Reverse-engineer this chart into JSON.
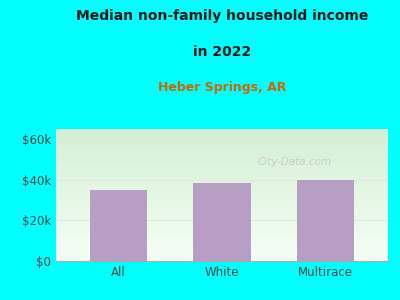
{
  "title_line1": "Median non-family household income",
  "title_line2": "in 2022",
  "subtitle": "Heber Springs, AR",
  "categories": [
    "All",
    "White",
    "Multirace"
  ],
  "values": [
    35000,
    38500,
    40000
  ],
  "bar_color": "#b89ec4",
  "outer_bg": "#00ffff",
  "plot_bg_top": "#d4efd4",
  "plot_bg_bottom": "#f0f8f0",
  "title_color": "#1a1a1a",
  "subtitle_color": "#cc6600",
  "tick_label_color": "#444444",
  "yticks": [
    0,
    20000,
    40000,
    60000
  ],
  "ytick_labels": [
    "$0",
    "$20k",
    "$40k",
    "$60k"
  ],
  "ylim": [
    0,
    65000
  ],
  "watermark": "City-Data.com",
  "watermark_color": "#c8c8c8",
  "grid_color": "#e0e8e0"
}
